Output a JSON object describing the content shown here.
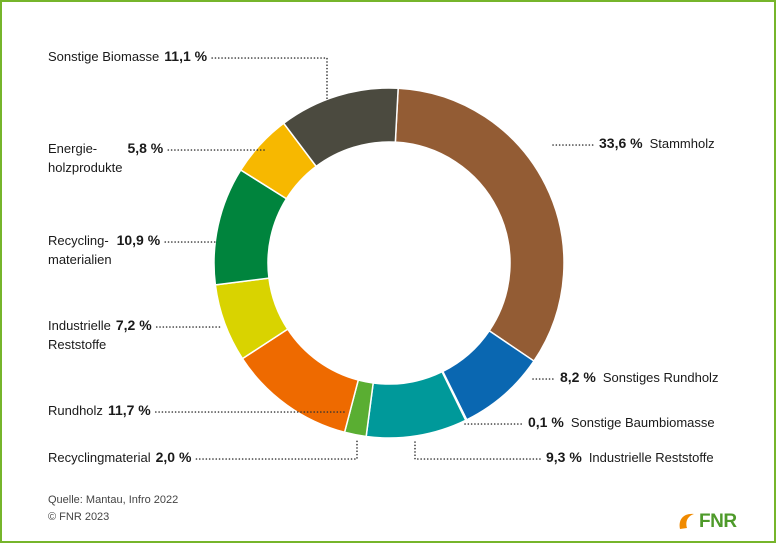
{
  "chart_data": {
    "type": "pie",
    "donut": true,
    "categories": [
      "Stammholz",
      "Sonstiges Rundholz",
      "Sonstige Baumbiomasse",
      "Industrielle Reststoffe",
      "Recyclingmaterial",
      "Rundholz",
      "Industrielle\nReststoffe",
      "Recycling-\nmaterialien",
      "Energie-\nholzprodukte",
      "Sonstige Biomasse"
    ],
    "values": [
      33.6,
      8.2,
      0.1,
      9.3,
      2.0,
      11.7,
      7.2,
      10.9,
      5.8,
      11.1
    ],
    "value_labels": [
      "33,6 %",
      "8,2 %",
      "0,1 %",
      "9,3 %",
      "2,0 %",
      "11,7 %",
      "7,2 %",
      "10,9 %",
      "5,8 %",
      "11,1 %"
    ],
    "colors": [
      "#935c34",
      "#0a67b1",
      "#8fb8dc",
      "#00999a",
      "#5aae32",
      "#ee6a00",
      "#d9d300",
      "#00843d",
      "#f7b800",
      "#4b4a3f"
    ]
  },
  "source": [
    "Quelle: Mantau, Infro 2022",
    "© FNR 2023"
  ],
  "logo": "FNR"
}
